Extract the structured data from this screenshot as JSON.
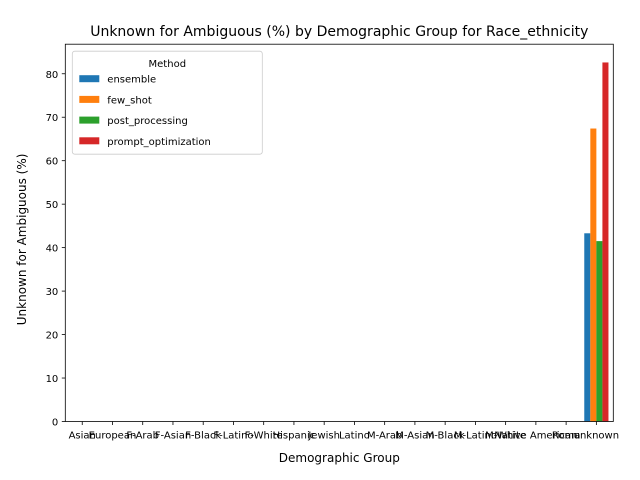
{
  "chart_data": {
    "type": "bar",
    "title": "Unknown for Ambiguous (%) by Demographic Group for Race_ethnicity",
    "xlabel": "Demographic Group",
    "ylabel": "Unknown for Ambiguous (%)",
    "ylim": [
      0,
      86.8
    ],
    "yticks": [
      0,
      10,
      20,
      30,
      40,
      50,
      60,
      70,
      80
    ],
    "grid": false,
    "legend": {
      "title": "Method",
      "placement": "top-left"
    },
    "categories": [
      "Asian",
      "European",
      "F-Arab",
      "F-Asian",
      "F-Black",
      "F-Latino",
      "F-White",
      "Hispanic",
      "Jewish",
      "Latino",
      "M-Arab",
      "M-Asian",
      "M-Black",
      "M-Latino",
      "M-White",
      "Native American",
      "Roma",
      "unknown"
    ],
    "series": [
      {
        "name": "ensemble",
        "color": "#1f77b4",
        "values": [
          0,
          0,
          0,
          0,
          0,
          0,
          0,
          0,
          0,
          0,
          0,
          0,
          0,
          0,
          0,
          0,
          0,
          43.3
        ]
      },
      {
        "name": "few_shot",
        "color": "#ff7f0e",
        "values": [
          0,
          0,
          0,
          0,
          0,
          0,
          0,
          0,
          0,
          0,
          0,
          0,
          0,
          0,
          0,
          0,
          0,
          67.4
        ]
      },
      {
        "name": "post_processing",
        "color": "#2ca02c",
        "values": [
          0,
          0,
          0,
          0,
          0,
          0,
          0,
          0,
          0,
          0,
          0,
          0,
          0,
          0,
          0,
          0,
          0,
          41.5
        ]
      },
      {
        "name": "prompt_optimization",
        "color": "#d62728",
        "values": [
          0,
          0,
          0,
          0,
          0,
          0,
          0,
          0,
          0,
          0,
          0,
          0,
          0,
          0,
          0,
          0,
          0,
          82.6
        ]
      }
    ]
  }
}
